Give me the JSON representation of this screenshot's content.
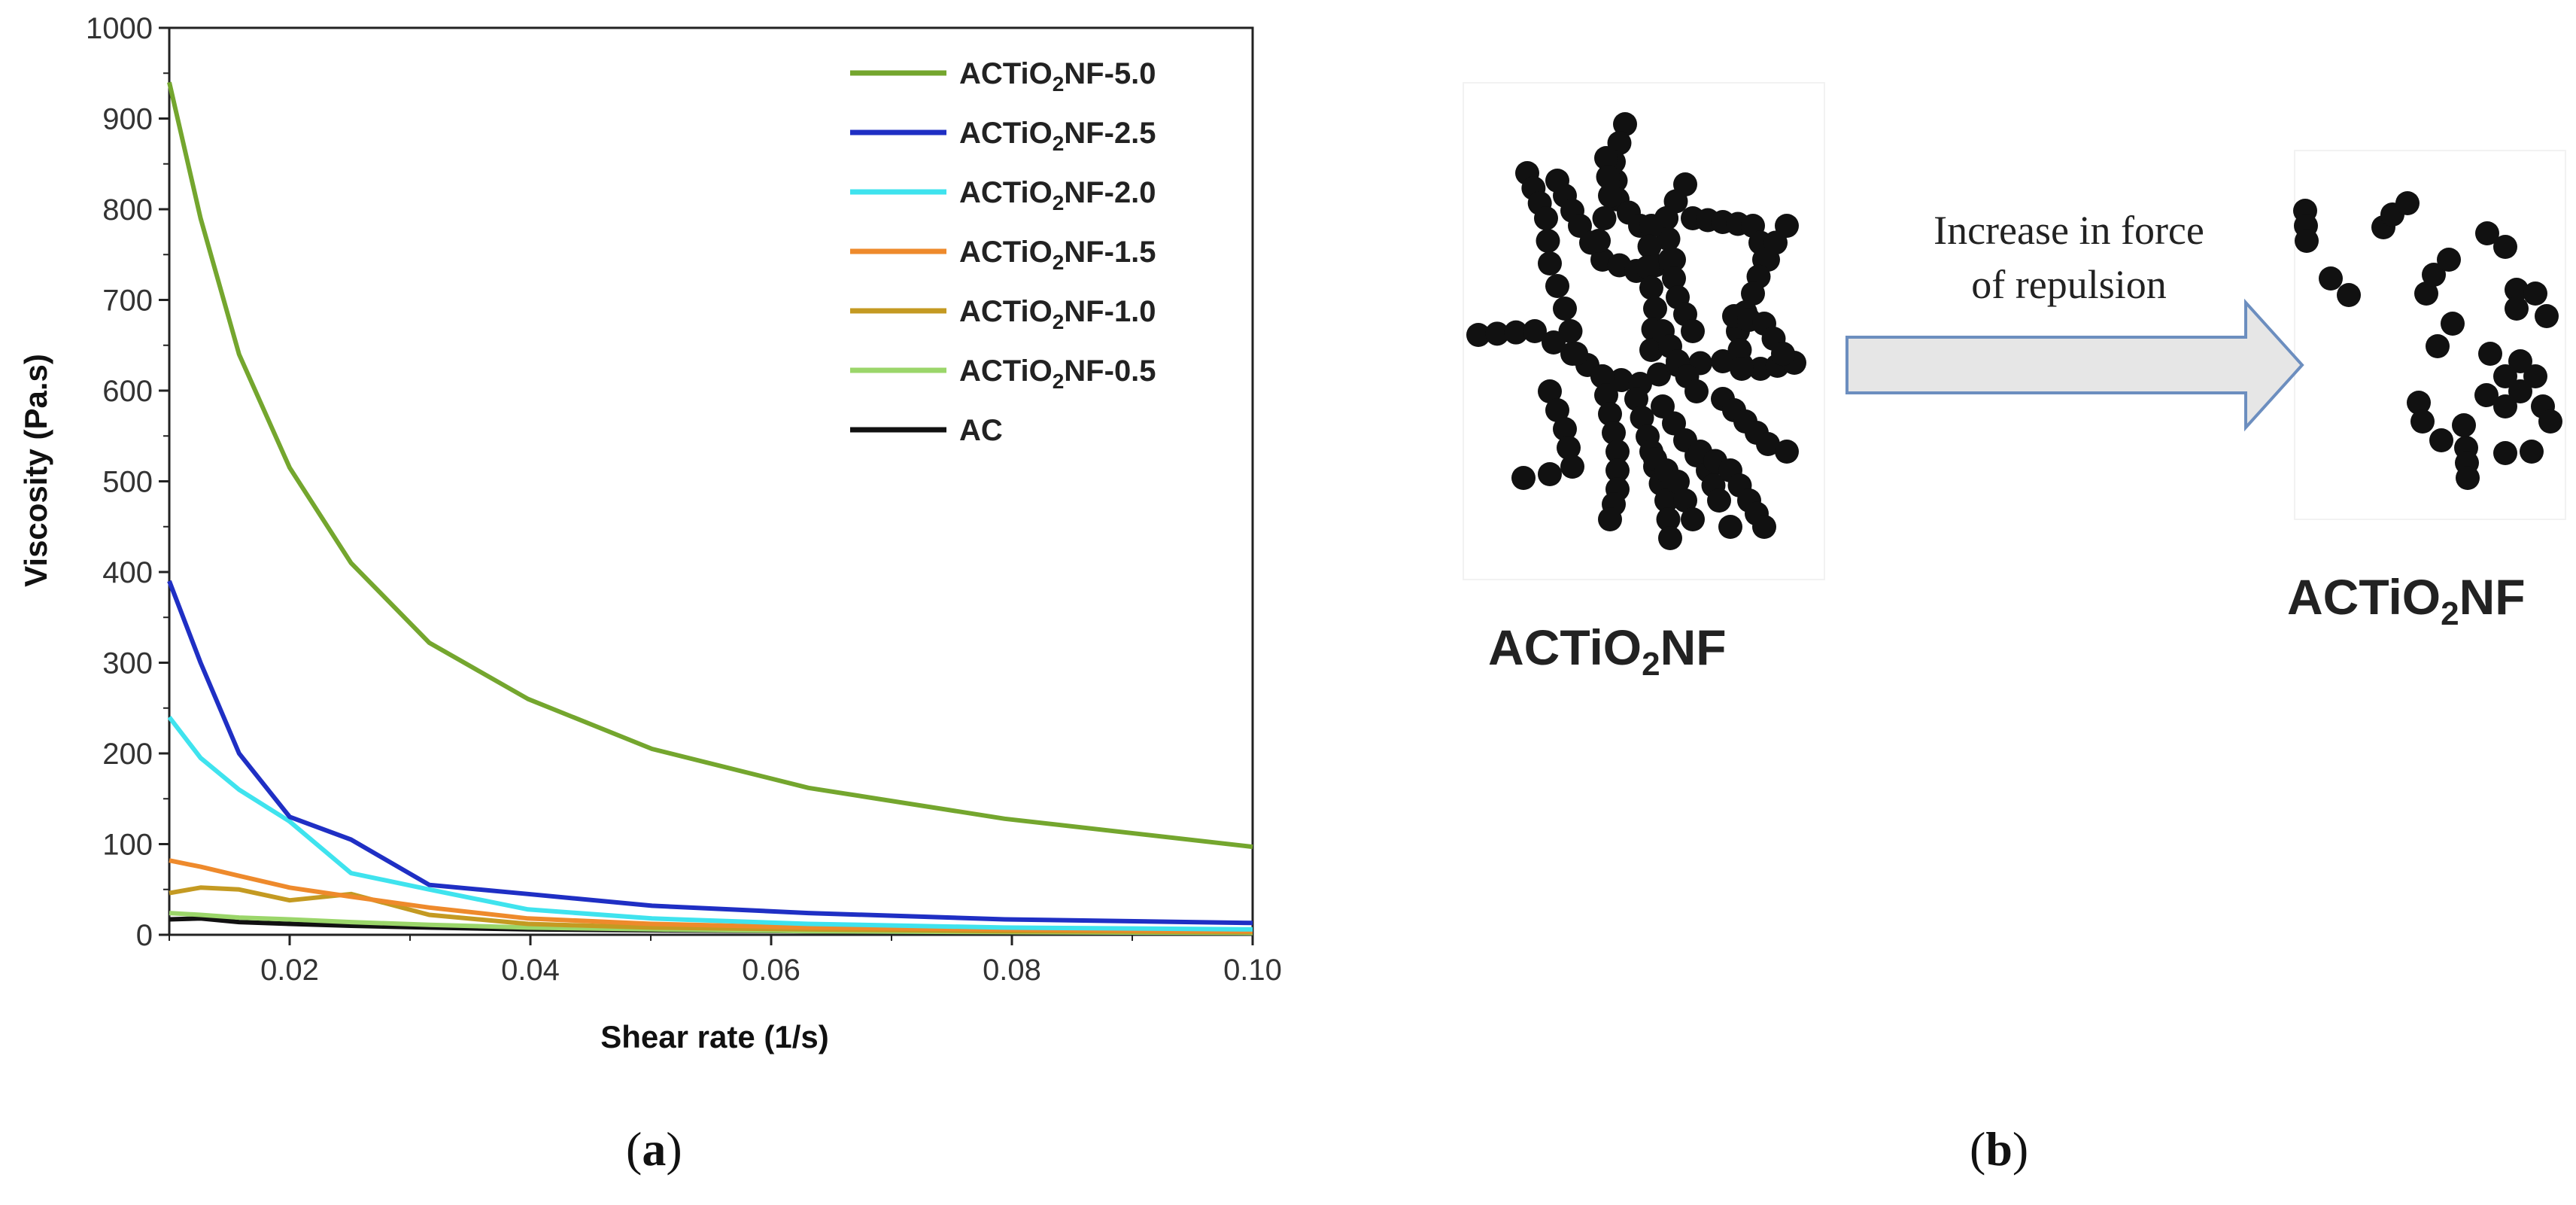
{
  "chart_data": {
    "type": "line",
    "xlabel": "Shear rate (1/s)",
    "ylabel": "Viscosity (Pa.s)",
    "xlim": [
      0.01,
      0.1
    ],
    "ylim": [
      0,
      1000
    ],
    "x_ticks": [
      "0.02",
      "0.04",
      "0.06",
      "0.08",
      "0.10"
    ],
    "y_ticks": [
      "0",
      "100",
      "200",
      "300",
      "400",
      "500",
      "600",
      "700",
      "800",
      "900",
      "1000"
    ],
    "legend_position": "top-right",
    "series": [
      {
        "name_base": "ACTiO",
        "name_sub": "2",
        "name_tail": "NF-5.0",
        "color": "#74A62E",
        "x": [
          0.01,
          0.0126,
          0.0158,
          0.02,
          0.0251,
          0.0316,
          0.0398,
          0.0501,
          0.0631,
          0.0794,
          0.1
        ],
        "y": [
          940,
          790,
          640,
          515,
          410,
          322,
          260,
          205,
          162,
          128,
          97
        ]
      },
      {
        "name_base": "ACTiO",
        "name_sub": "2",
        "name_tail": "NF-2.5",
        "color": "#1F2FC4",
        "x": [
          0.01,
          0.0126,
          0.0158,
          0.02,
          0.0251,
          0.0316,
          0.0398,
          0.0501,
          0.0631,
          0.0794,
          0.1
        ],
        "y": [
          390,
          300,
          200,
          130,
          105,
          55,
          45,
          32,
          24,
          17,
          13
        ]
      },
      {
        "name_base": "ACTiO",
        "name_sub": "2",
        "name_tail": "NF-2.0",
        "color": "#3FE3EE",
        "x": [
          0.01,
          0.0126,
          0.0158,
          0.02,
          0.0251,
          0.0316,
          0.0398,
          0.0501,
          0.0631,
          0.0794,
          0.1
        ],
        "y": [
          240,
          195,
          160,
          125,
          68,
          50,
          28,
          18,
          12,
          8,
          6
        ]
      },
      {
        "name_base": "ACTiO",
        "name_sub": "2",
        "name_tail": "NF-1.5",
        "color": "#EE8A2C",
        "x": [
          0.01,
          0.0126,
          0.0158,
          0.02,
          0.0251,
          0.0316,
          0.0398,
          0.0501,
          0.0631,
          0.0794,
          0.1
        ],
        "y": [
          82,
          75,
          65,
          52,
          42,
          30,
          18,
          12,
          8,
          6,
          4
        ]
      },
      {
        "name_base": "ACTiO",
        "name_sub": "2",
        "name_tail": "NF-1.0",
        "color": "#C49A22",
        "x": [
          0.01,
          0.0126,
          0.0158,
          0.02,
          0.0251,
          0.0316,
          0.0398,
          0.0501,
          0.0631,
          0.0794,
          0.1
        ],
        "y": [
          46,
          52,
          50,
          38,
          45,
          22,
          12,
          8,
          6,
          4,
          3
        ]
      },
      {
        "name_base": "ACTiO",
        "name_sub": "2",
        "name_tail": "NF-0.5",
        "color": "#9BD66A",
        "x": [
          0.01,
          0.0126,
          0.0158,
          0.02,
          0.0251,
          0.0316,
          0.0398,
          0.0501,
          0.0631,
          0.0794,
          0.1
        ],
        "y": [
          24,
          22,
          19,
          17,
          14,
          11,
          8,
          6,
          4,
          3,
          2
        ]
      },
      {
        "name_base": "AC",
        "name_sub": "",
        "name_tail": "",
        "color": "#111111",
        "x": [
          0.01,
          0.0126,
          0.0158,
          0.02,
          0.0251,
          0.0316,
          0.0398,
          0.0501,
          0.0631,
          0.0794,
          0.1
        ],
        "y": [
          17,
          18,
          14,
          12,
          10,
          8,
          6,
          5,
          4,
          3,
          2
        ]
      }
    ]
  },
  "panels": {
    "a": {
      "open": "(",
      "letter": "a",
      "close": ")"
    },
    "b": {
      "open": "(",
      "letter": "b",
      "close": ")"
    }
  },
  "diagram": {
    "arrow_caption_line1": "Increase in force",
    "arrow_caption_line2": "of repulsion",
    "left_label": {
      "base": "ACTiO",
      "sub": "2",
      "tail": "NF"
    },
    "right_label": {
      "base": "ACTiO",
      "sub": "2",
      "tail": "NF"
    },
    "arrow_fill": "#E6E6E6",
    "arrow_stroke": "#6C8EBF",
    "particle_color": "#111111"
  }
}
